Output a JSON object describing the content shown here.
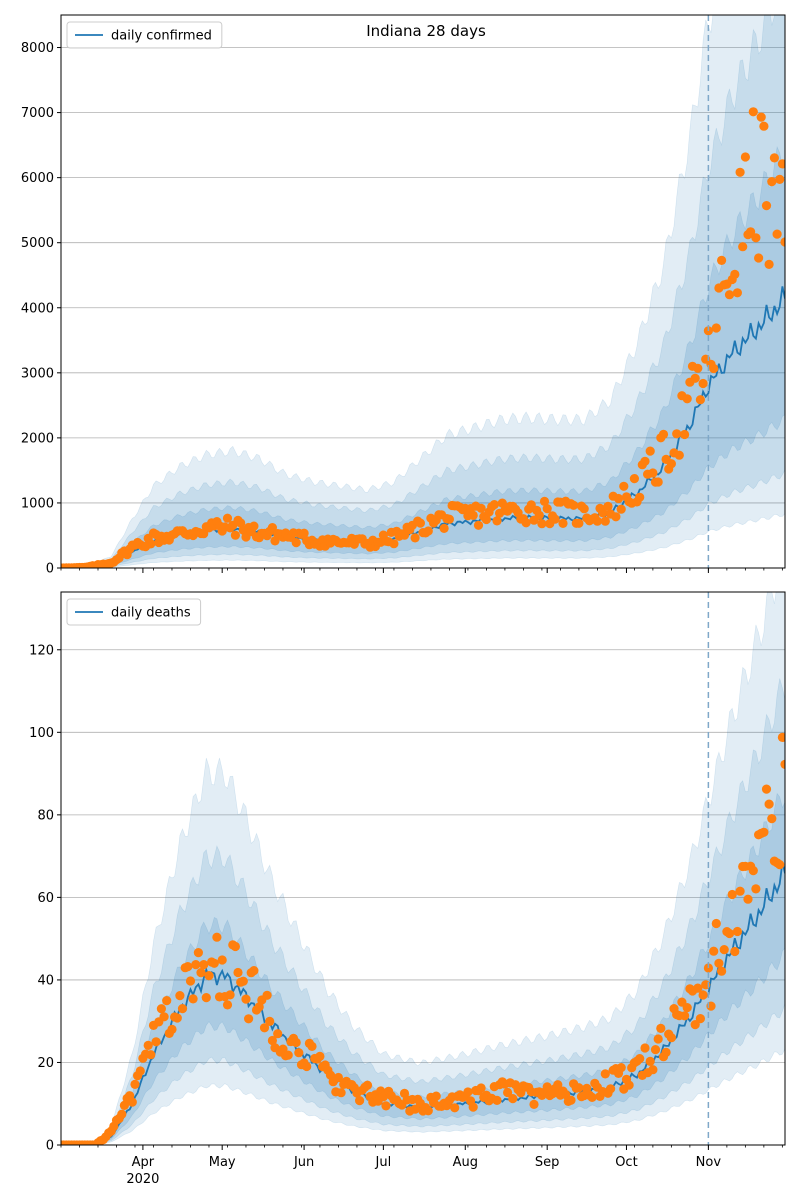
{
  "chart_data": [
    {
      "type": "line",
      "title": "Indiana 28 days",
      "series": [
        {
          "name": "daily confirmed",
          "color": "#1f77b4",
          "role": "model-median"
        },
        {
          "name": "",
          "color": "#ff7f0e",
          "role": "observed-points"
        }
      ],
      "x_range": [
        "2020-03-01",
        "2020-11-30"
      ],
      "x_ticks": [
        "Apr",
        "May",
        "Jun",
        "Jul",
        "Aug",
        "Sep",
        "Oct",
        "Nov"
      ],
      "x_tick_dates": [
        "2020-04-01",
        "2020-05-01",
        "2020-06-01",
        "2020-07-01",
        "2020-08-01",
        "2020-09-01",
        "2020-10-01",
        "2020-11-01"
      ],
      "x_year_label": "2020",
      "ylim": [
        0,
        8500
      ],
      "y_ticks": [
        0,
        1000,
        2000,
        3000,
        4000,
        5000,
        6000,
        7000,
        8000
      ],
      "grid": "horizontal",
      "legend": "top-left",
      "forecast_line_date": "2020-11-01",
      "forecast_line_color": "#7fa8c9",
      "median_key": [
        [
          "2020-03-01",
          0
        ],
        [
          "2020-03-10",
          5
        ],
        [
          "2020-03-20",
          60
        ],
        [
          "2020-03-28",
          250
        ],
        [
          "2020-04-05",
          420
        ],
        [
          "2020-04-15",
          520
        ],
        [
          "2020-04-25",
          580
        ],
        [
          "2020-05-05",
          600
        ],
        [
          "2020-05-15",
          560
        ],
        [
          "2020-05-25",
          480
        ],
        [
          "2020-06-05",
          440
        ],
        [
          "2020-06-15",
          420
        ],
        [
          "2020-06-25",
          400
        ],
        [
          "2020-07-05",
          440
        ],
        [
          "2020-07-15",
          560
        ],
        [
          "2020-07-25",
          680
        ],
        [
          "2020-08-05",
          720
        ],
        [
          "2020-08-15",
          760
        ],
        [
          "2020-08-25",
          770
        ],
        [
          "2020-09-05",
          760
        ],
        [
          "2020-09-15",
          760
        ],
        [
          "2020-09-25",
          860
        ],
        [
          "2020-10-05",
          1150
        ],
        [
          "2020-10-15",
          1550
        ],
        [
          "2020-10-25",
          2200
        ],
        [
          "2020-11-01",
          2800
        ],
        [
          "2020-11-10",
          3300
        ],
        [
          "2020-11-20",
          3700
        ],
        [
          "2020-11-30",
          4150
        ]
      ],
      "observed_key": [
        [
          "2020-03-01",
          0
        ],
        [
          "2020-03-10",
          8
        ],
        [
          "2020-03-20",
          80
        ],
        [
          "2020-03-28",
          320
        ],
        [
          "2020-04-05",
          460
        ],
        [
          "2020-04-15",
          520
        ],
        [
          "2020-04-25",
          620
        ],
        [
          "2020-05-05",
          640
        ],
        [
          "2020-05-15",
          540
        ],
        [
          "2020-05-25",
          500
        ],
        [
          "2020-06-05",
          420
        ],
        [
          "2020-06-15",
          400
        ],
        [
          "2020-06-25",
          380
        ],
        [
          "2020-07-05",
          460
        ],
        [
          "2020-07-15",
          620
        ],
        [
          "2020-07-25",
          780
        ],
        [
          "2020-08-05",
          820
        ],
        [
          "2020-08-15",
          860
        ],
        [
          "2020-08-25",
          880
        ],
        [
          "2020-09-05",
          860
        ],
        [
          "2020-09-15",
          820
        ],
        [
          "2020-09-25",
          900
        ],
        [
          "2020-10-05",
          1250
        ],
        [
          "2020-10-15",
          1700
        ],
        [
          "2020-10-25",
          2500
        ],
        [
          "2020-11-01",
          3100
        ],
        [
          "2020-11-10",
          4800
        ],
        [
          "2020-11-20",
          6000
        ],
        [
          "2020-11-30",
          5000
        ]
      ],
      "band_scales": [
        [
          0.55,
          1.55
        ],
        [
          0.35,
          2.2
        ],
        [
          0.2,
          3.0
        ]
      ]
    },
    {
      "type": "line",
      "title": "",
      "series": [
        {
          "name": "daily deaths",
          "color": "#1f77b4",
          "role": "model-median"
        },
        {
          "name": "",
          "color": "#ff7f0e",
          "role": "observed-points"
        }
      ],
      "x_range": [
        "2020-03-01",
        "2020-11-30"
      ],
      "x_ticks": [
        "Apr",
        "May",
        "Jun",
        "Jul",
        "Aug",
        "Sep",
        "Oct",
        "Nov"
      ],
      "x_tick_dates": [
        "2020-04-01",
        "2020-05-01",
        "2020-06-01",
        "2020-07-01",
        "2020-08-01",
        "2020-09-01",
        "2020-10-01",
        "2020-11-01"
      ],
      "x_year_label": "2020",
      "ylim": [
        0,
        134
      ],
      "y_ticks": [
        0,
        20,
        40,
        60,
        80,
        100,
        120
      ],
      "grid": "horizontal",
      "legend": "top-left",
      "forecast_line_date": "2020-11-01",
      "forecast_line_color": "#7fa8c9",
      "median_key": [
        [
          "2020-03-01",
          0
        ],
        [
          "2020-03-14",
          0
        ],
        [
          "2020-03-20",
          2
        ],
        [
          "2020-03-28",
          10
        ],
        [
          "2020-04-05",
          22
        ],
        [
          "2020-04-15",
          33
        ],
        [
          "2020-04-25",
          41
        ],
        [
          "2020-05-02",
          41
        ],
        [
          "2020-05-10",
          36
        ],
        [
          "2020-05-20",
          29
        ],
        [
          "2020-06-01",
          22
        ],
        [
          "2020-06-10",
          17
        ],
        [
          "2020-06-20",
          13
        ],
        [
          "2020-07-01",
          10
        ],
        [
          "2020-07-15",
          9
        ],
        [
          "2020-08-01",
          10
        ],
        [
          "2020-08-15",
          11
        ],
        [
          "2020-09-01",
          12
        ],
        [
          "2020-09-15",
          13
        ],
        [
          "2020-09-25",
          14
        ],
        [
          "2020-10-05",
          17
        ],
        [
          "2020-10-15",
          23
        ],
        [
          "2020-10-25",
          31
        ],
        [
          "2020-11-01",
          38
        ],
        [
          "2020-11-10",
          47
        ],
        [
          "2020-11-20",
          56
        ],
        [
          "2020-11-30",
          66
        ]
      ],
      "observed_key": [
        [
          "2020-03-01",
          0
        ],
        [
          "2020-03-14",
          0
        ],
        [
          "2020-03-20",
          3
        ],
        [
          "2020-03-28",
          12
        ],
        [
          "2020-04-05",
          25
        ],
        [
          "2020-04-15",
          36
        ],
        [
          "2020-04-25",
          42
        ],
        [
          "2020-05-02",
          43
        ],
        [
          "2020-05-10",
          38
        ],
        [
          "2020-05-20",
          30
        ],
        [
          "2020-06-01",
          22
        ],
        [
          "2020-06-10",
          17
        ],
        [
          "2020-06-20",
          13
        ],
        [
          "2020-07-01",
          11
        ],
        [
          "2020-07-15",
          10
        ],
        [
          "2020-08-01",
          11
        ],
        [
          "2020-08-15",
          13
        ],
        [
          "2020-09-01",
          12
        ],
        [
          "2020-09-15",
          13
        ],
        [
          "2020-09-25",
          15
        ],
        [
          "2020-10-05",
          18
        ],
        [
          "2020-10-15",
          25
        ],
        [
          "2020-10-25",
          33
        ],
        [
          "2020-11-01",
          40
        ],
        [
          "2020-11-10",
          55
        ],
        [
          "2020-11-20",
          72
        ],
        [
          "2020-11-30",
          84
        ]
      ],
      "band_scales": [
        [
          0.7,
          1.3
        ],
        [
          0.5,
          1.7
        ],
        [
          0.35,
          2.2
        ]
      ]
    }
  ]
}
